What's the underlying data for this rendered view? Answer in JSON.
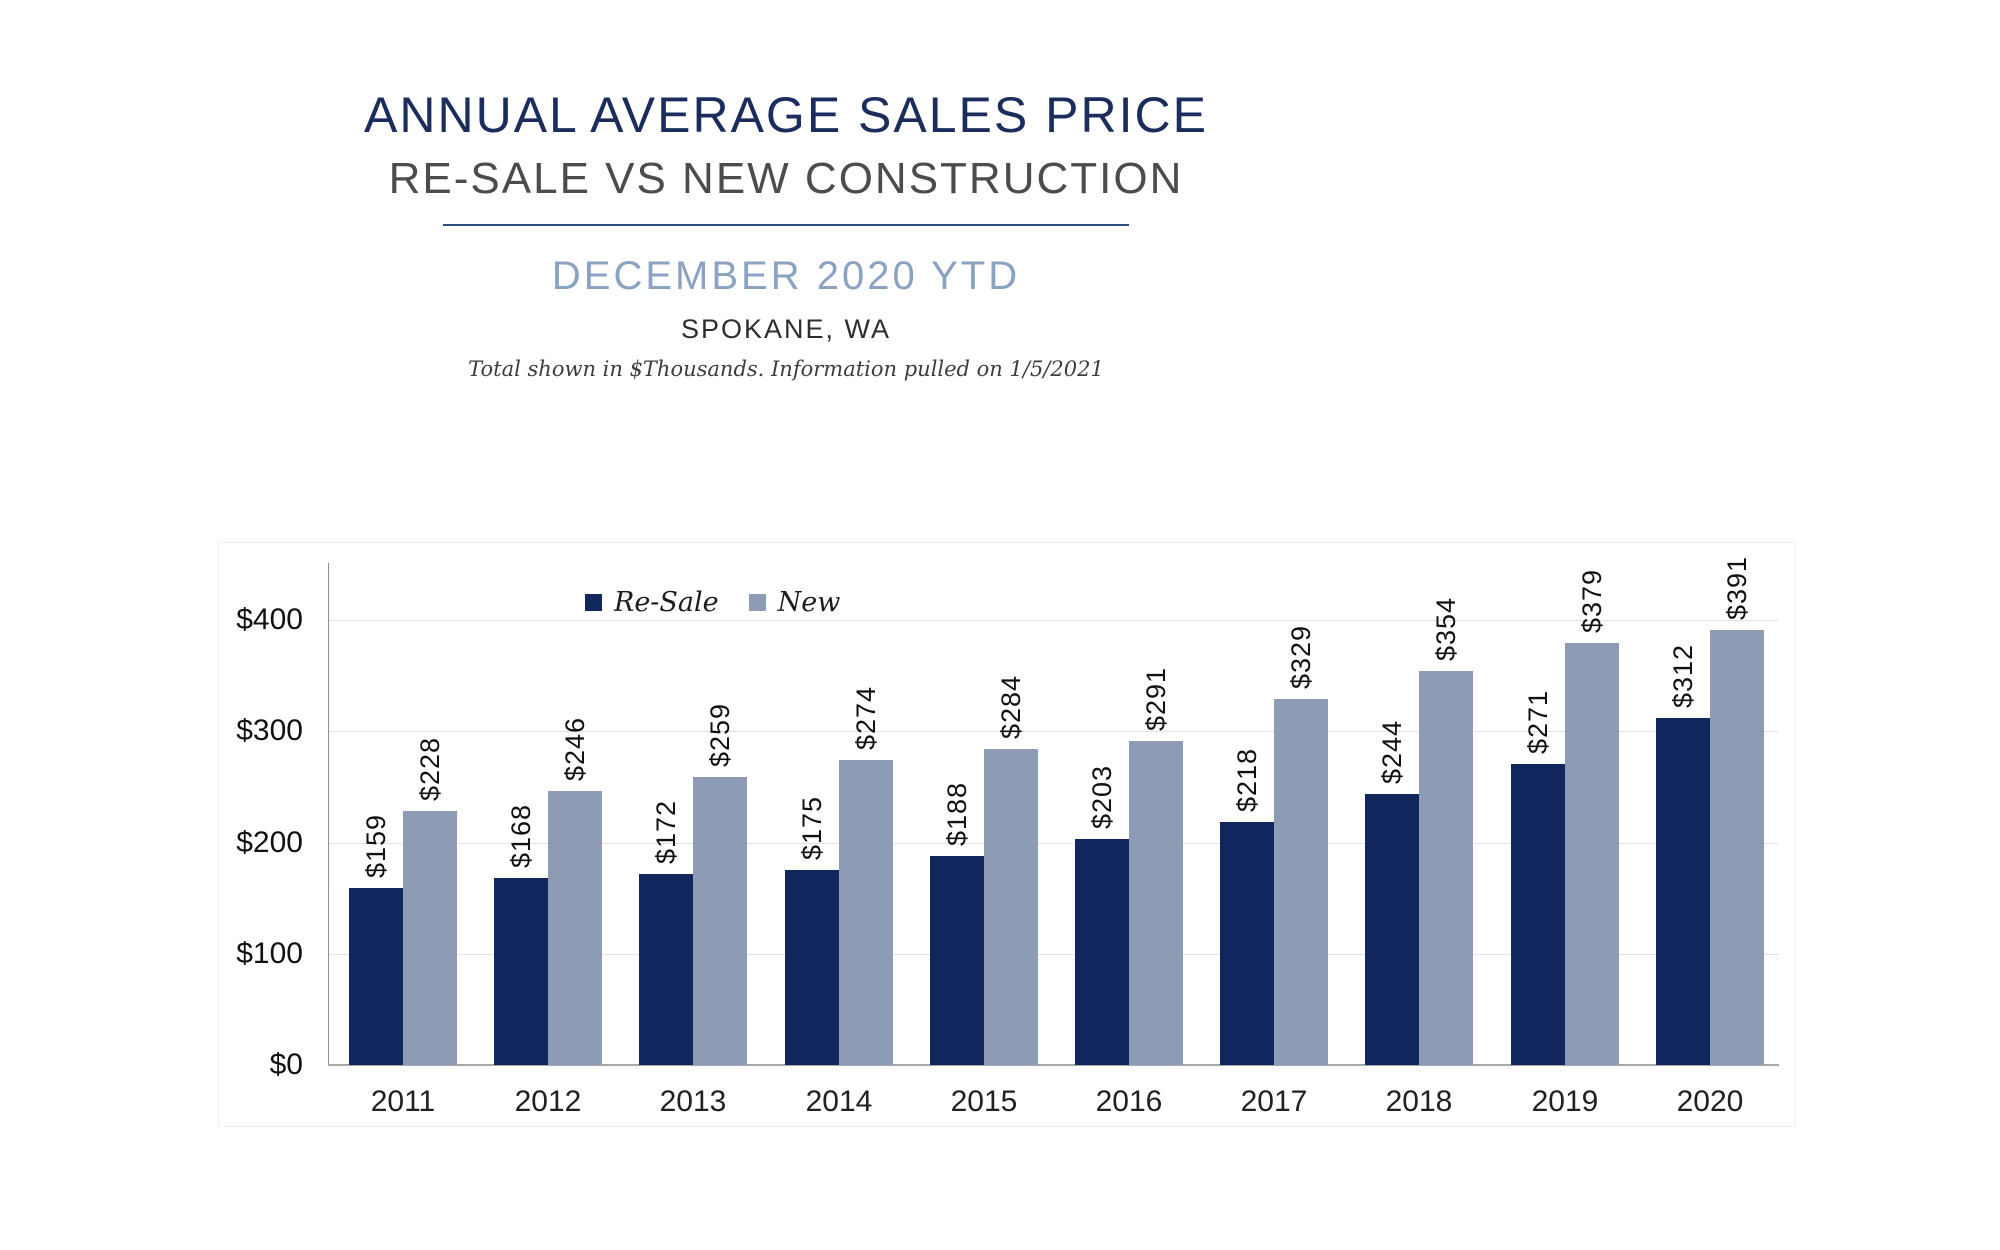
{
  "header": {
    "title": "ANNUAL AVERAGE SALES PRICE",
    "subtitle": "RE-SALE VS NEW CONSTRUCTION",
    "period": "DECEMBER 2020 YTD",
    "location": "SPOKANE, WA",
    "note": "Total shown in $Thousands. Information pulled on 1/5/2021",
    "colors": {
      "title_navy": "#1b2d5c",
      "subtitle_gray": "#4c4c4c",
      "period_blue": "#8ba2c2",
      "divider_navy": "#2e4c7e"
    }
  },
  "chart_data": {
    "type": "bar",
    "title": "",
    "xlabel": "",
    "ylabel": "",
    "categories": [
      "2011",
      "2012",
      "2013",
      "2014",
      "2015",
      "2016",
      "2017",
      "2018",
      "2019",
      "2020"
    ],
    "series": [
      {
        "name": "Re-Sale",
        "color": "#10265c",
        "values": [
          159,
          168,
          172,
          175,
          188,
          203,
          218,
          244,
          271,
          312
        ]
      },
      {
        "name": "New",
        "color": "#8d9cb4",
        "values": [
          228,
          246,
          259,
          274,
          284,
          291,
          329,
          354,
          379,
          391
        ]
      }
    ],
    "value_label_prefix": "$",
    "value_labels_rotated_90": true,
    "ylim": [
      0,
      400
    ],
    "yticks": [
      0,
      100,
      200,
      300,
      400
    ],
    "ytick_prefix": "$",
    "grid": "horizontal",
    "legend_position": "inside-top-left",
    "gridline_color": "#dfe2ec",
    "axis_color": "#8f8f8f"
  }
}
